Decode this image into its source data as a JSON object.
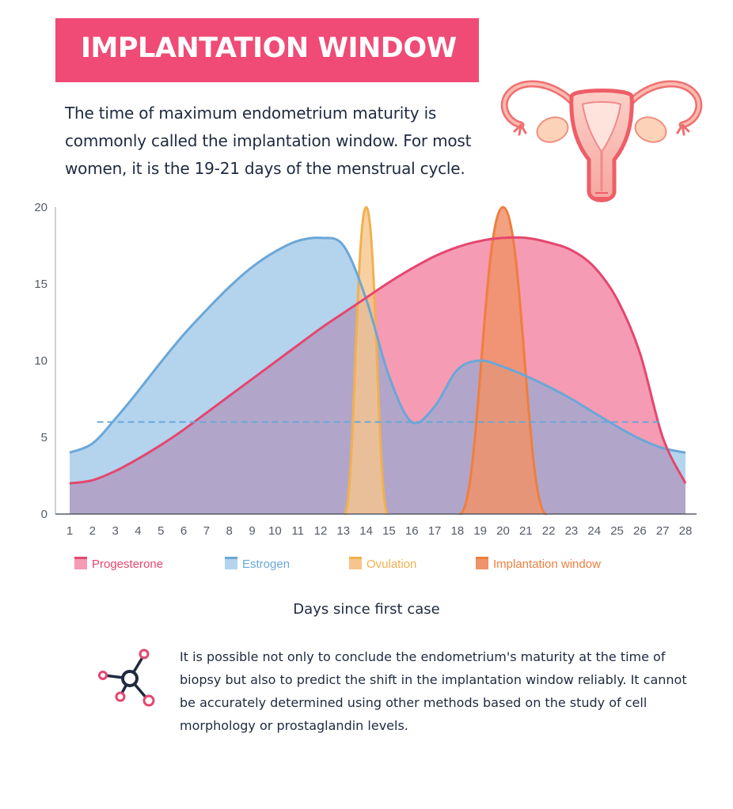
{
  "header": {
    "title": "IMPLANTATION WINDOW",
    "intro": "The time of maximum endometrium maturity is commonly called the implantation window. For most women, it is the 19-21 days of the menstrual cycle."
  },
  "illustration": {
    "icon": "uterus-icon"
  },
  "chart_data": {
    "type": "area",
    "x": [
      1,
      2,
      3,
      4,
      5,
      6,
      7,
      8,
      9,
      10,
      11,
      12,
      13,
      14,
      15,
      16,
      17,
      18,
      19,
      20,
      21,
      22,
      23,
      24,
      25,
      26,
      27,
      28
    ],
    "xlabel": "Days since first case",
    "ylabel": "",
    "ylim": [
      0,
      20
    ],
    "yticks": [
      0,
      5,
      10,
      15,
      20
    ],
    "grid": false,
    "legend_position": "bottom",
    "reference_line": {
      "y": 6,
      "style": "dashed",
      "color": "#6aa7d8"
    },
    "series": [
      {
        "name": "Progesterone",
        "color": "#e5466f",
        "fill": "#f59bb3",
        "values": [
          2,
          2.2,
          2.8,
          3.6,
          4.5,
          5.5,
          6.6,
          7.7,
          8.8,
          9.9,
          11,
          12.1,
          13.1,
          14.1,
          15.1,
          16,
          16.8,
          17.4,
          17.8,
          18,
          18,
          17.7,
          17.2,
          16.1,
          14,
          10.5,
          5,
          2
        ]
      },
      {
        "name": "Estrogen",
        "color": "#6aa7d8",
        "fill": "#b4d4ee",
        "values": [
          4,
          4.6,
          6.2,
          8,
          9.9,
          11.7,
          13.3,
          14.8,
          16.1,
          17.1,
          17.8,
          18,
          17.5,
          14,
          9,
          6,
          7,
          9.4,
          10,
          9.6,
          9,
          8.3,
          7.5,
          6.6,
          5.7,
          4.9,
          4.3,
          4
        ]
      },
      {
        "name": "Ovulation",
        "color": "#f2b04e",
        "fill": "#f6c58c",
        "values": [
          0,
          0,
          0,
          0,
          0,
          0,
          0,
          0,
          0,
          0,
          0,
          0,
          0,
          20,
          0,
          0,
          0,
          0,
          0,
          0,
          0,
          0,
          0,
          0,
          0,
          0,
          0,
          0
        ]
      },
      {
        "name": "Implantation window",
        "color": "#ef7e3f",
        "fill": "#f0926a",
        "values": [
          0,
          0,
          0,
          0,
          0,
          0,
          0,
          0,
          0,
          0,
          0,
          0,
          0,
          0,
          0,
          0,
          0,
          0,
          7,
          20,
          7,
          0,
          0,
          0,
          0,
          0,
          0,
          0
        ]
      }
    ],
    "overlap_color": "#b1a6c9"
  },
  "note": {
    "icon": "molecule-icon",
    "text": "It is possible not only to conclude the endometrium's maturity at the time of biopsy but also to predict the shift in the implantation window reliably. It cannot be accurately determined using other methods based on the study of cell morphology or prostaglandin levels."
  }
}
